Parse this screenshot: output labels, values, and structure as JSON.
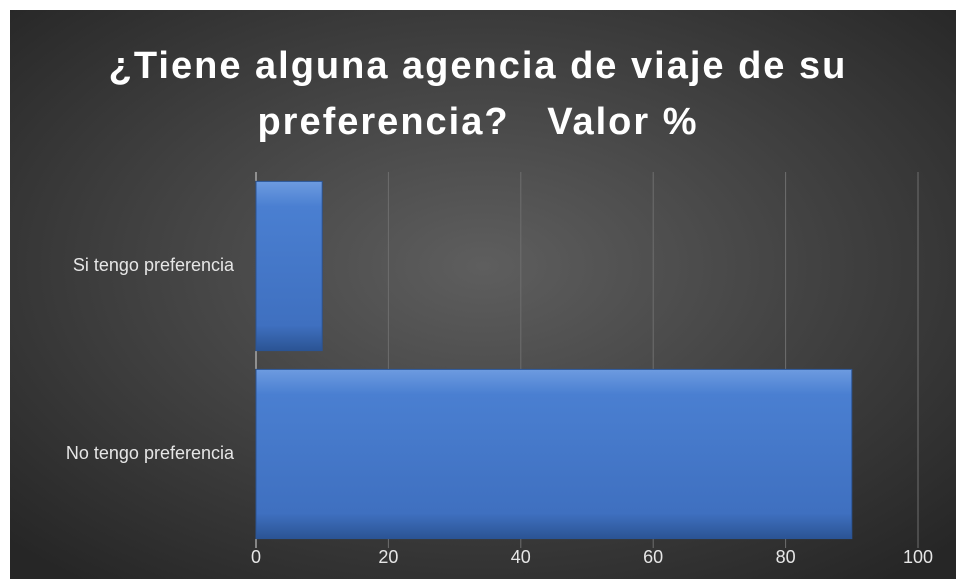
{
  "chart_data": {
    "type": "bar",
    "orientation": "horizontal",
    "title": "¿Tiene alguna agencia de viaje de su preferencia?   Valor %",
    "categories": [
      "Si tengo preferencia",
      "No tengo preferencia"
    ],
    "values": [
      10,
      90
    ],
    "color": "#4a7fd1",
    "xlim": [
      0,
      100
    ],
    "xticks": [
      0,
      20,
      40,
      60,
      80,
      100
    ],
    "grid": true
  }
}
